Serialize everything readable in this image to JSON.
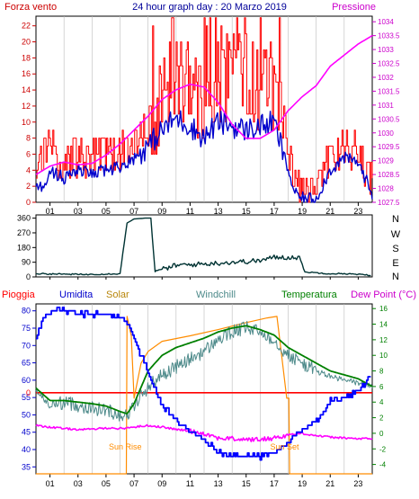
{
  "chart_data": [
    {
      "type": "line",
      "title": "24 hour graph day : 20 Marzo 2019",
      "left_label": "Forza vento",
      "right_label": "Pressione",
      "x_ticks": [
        "01",
        "03",
        "05",
        "07",
        "09",
        "11",
        "13",
        "15",
        "17",
        "19",
        "21",
        "23"
      ],
      "x_range": [
        0,
        24
      ],
      "y_left_ticks": [
        "0",
        "2",
        "4",
        "6",
        "8",
        "10",
        "12",
        "14",
        "16",
        "18",
        "20",
        "22"
      ],
      "y_left_range": [
        0,
        23.2
      ],
      "y_right_ticks": [
        "1027.5",
        "1028",
        "1028.5",
        "1029",
        "1029.5",
        "1030",
        "1030.5",
        "1031",
        "1031.5",
        "1032",
        "1032.5",
        "1033",
        "1033.5",
        "1034"
      ],
      "y_right_range": [
        1027.5,
        1034.2
      ],
      "colors": {
        "gust": "#ff0000",
        "speed": "#0000cc",
        "pressure": "#ff00ff"
      },
      "series": [
        {
          "key": "pressure",
          "axis": "right",
          "points": [
            [
              0,
              1028.5
            ],
            [
              1,
              1028.8
            ],
            [
              2,
              1028.95
            ],
            [
              3,
              1028.85
            ],
            [
              4,
              1028.9
            ],
            [
              5,
              1029.2
            ],
            [
              6,
              1029.6
            ],
            [
              7,
              1030.1
            ],
            [
              8,
              1030.6
            ],
            [
              9,
              1031.2
            ],
            [
              10,
              1031.55
            ],
            [
              11,
              1031.75
            ],
            [
              12,
              1031.65
            ],
            [
              13,
              1031.1
            ],
            [
              14,
              1030.3
            ],
            [
              15,
              1029.8
            ],
            [
              16,
              1029.8
            ],
            [
              17,
              1030.1
            ],
            [
              18,
              1030.8
            ],
            [
              19,
              1031.3
            ],
            [
              20,
              1031.7
            ],
            [
              21,
              1032.4
            ],
            [
              22,
              1032.8
            ],
            [
              23,
              1033.2
            ],
            [
              24,
              1033.5
            ]
          ]
        },
        {
          "key": "speed",
          "axis": "left",
          "points": [
            [
              0,
              1.5
            ],
            [
              0.5,
              2
            ],
            [
              1,
              4
            ],
            [
              2,
              3
            ],
            [
              3,
              4
            ],
            [
              4,
              3.5
            ],
            [
              5,
              4
            ],
            [
              6,
              4.5
            ],
            [
              7,
              5.5
            ],
            [
              8,
              7
            ],
            [
              9,
              9
            ],
            [
              10,
              10.5
            ],
            [
              11,
              9.5
            ],
            [
              12,
              8
            ],
            [
              13,
              10
            ],
            [
              14,
              9.5
            ],
            [
              15,
              9
            ],
            [
              16,
              9.5
            ],
            [
              17,
              10
            ],
            [
              18,
              4
            ],
            [
              18.5,
              1
            ],
            [
              19,
              0.5
            ],
            [
              20,
              0.5
            ],
            [
              21,
              4
            ],
            [
              22,
              5.5
            ],
            [
              23,
              5
            ],
            [
              24,
              1
            ]
          ]
        },
        {
          "key": "gust",
          "axis": "left",
          "points": [
            [
              0,
              4
            ],
            [
              0.5,
              6
            ],
            [
              1,
              7
            ],
            [
              2,
              5
            ],
            [
              3,
              5.5
            ],
            [
              4,
              5.5
            ],
            [
              5,
              6
            ],
            [
              6,
              6
            ],
            [
              7,
              7
            ],
            [
              8,
              9
            ],
            [
              9,
              14
            ],
            [
              10,
              16
            ],
            [
              11,
              15
            ],
            [
              12,
              13
            ],
            [
              13,
              16
            ],
            [
              14,
              15
            ],
            [
              15,
              16
            ],
            [
              16,
              15
            ],
            [
              17,
              14
            ],
            [
              18,
              7
            ],
            [
              18.5,
              3
            ],
            [
              19,
              1
            ],
            [
              20,
              1
            ],
            [
              21,
              6
            ],
            [
              22,
              7
            ],
            [
              23,
              6
            ],
            [
              24,
              2
            ]
          ]
        }
      ]
    },
    {
      "type": "line",
      "x_ticks": [
        "01",
        "03",
        "05",
        "07",
        "09",
        "11",
        "13",
        "15",
        "17",
        "19",
        "21",
        "23"
      ],
      "x_range": [
        0,
        24
      ],
      "y_left_ticks": [
        "0",
        "90",
        "180",
        "270",
        "360"
      ],
      "y_left_range": [
        0,
        380
      ],
      "y_right_ticks": [
        "N",
        "W",
        "S",
        "E",
        "N"
      ],
      "colors": {
        "direction": "#003333"
      },
      "series": [
        {
          "key": "direction",
          "points": [
            [
              0,
              20
            ],
            [
              3.5,
              15
            ],
            [
              6,
              20
            ],
            [
              6.5,
              330
            ],
            [
              7,
              355
            ],
            [
              7.8,
              360
            ],
            [
              8.2,
              360
            ],
            [
              8.5,
              35
            ],
            [
              10,
              70
            ],
            [
              12,
              80
            ],
            [
              14,
              90
            ],
            [
              16,
              100
            ],
            [
              17,
              120
            ],
            [
              18.8,
              120
            ],
            [
              19.2,
              30
            ],
            [
              21,
              20
            ],
            [
              22,
              20
            ],
            [
              24,
              10
            ]
          ]
        }
      ]
    },
    {
      "type": "line",
      "labels": {
        "rain": "Pioggia",
        "humidity": "Umidita",
        "solar": "Solar",
        "windchill": "Windchill",
        "temperature": "Temperatura",
        "dewpoint": "Dew Point (°C)",
        "sunrise": "Sun Rise",
        "sunset": "Sun Set"
      },
      "x_ticks": [
        "01",
        "03",
        "05",
        "07",
        "09",
        "11",
        "13",
        "15",
        "17",
        "19",
        "21",
        "23"
      ],
      "x_range": [
        0,
        24
      ],
      "y_left_ticks": [
        "35",
        "40",
        "45",
        "50",
        "55",
        "60",
        "65",
        "70",
        "75",
        "80"
      ],
      "y_left_range": [
        33,
        82
      ],
      "rain_zero_label": "0",
      "y_right_ticks": [
        "-4",
        "-2",
        "0",
        "2",
        "4",
        "6",
        "8",
        "10",
        "12",
        "14",
        "16"
      ],
      "y_right_range": [
        -5.2,
        16.6
      ],
      "colors": {
        "humidity": "#0000ff",
        "solar": "#ff8c00",
        "windchill": "#4d8a8a",
        "temperature": "#008000",
        "dewpoint": "#ff00ff",
        "rain": "#ff0000"
      },
      "series": [
        {
          "key": "humidity",
          "axis": "left",
          "points": [
            [
              0,
              72
            ],
            [
              0.5,
              78
            ],
            [
              1,
              80
            ],
            [
              2,
              80
            ],
            [
              3,
              79
            ],
            [
              4,
              79
            ],
            [
              5,
              79
            ],
            [
              6,
              78
            ],
            [
              6.5,
              77
            ],
            [
              7,
              72
            ],
            [
              8,
              62
            ],
            [
              9,
              53
            ],
            [
              10,
              48
            ],
            [
              11,
              45
            ],
            [
              12,
              43
            ],
            [
              13,
              39
            ],
            [
              14,
              38
            ],
            [
              15,
              38
            ],
            [
              16,
              38
            ],
            [
              17,
              39
            ],
            [
              18,
              42
            ],
            [
              19,
              46
            ],
            [
              20,
              48
            ],
            [
              21,
              54
            ],
            [
              22,
              55
            ],
            [
              23,
              57
            ],
            [
              24,
              62
            ]
          ]
        },
        {
          "key": "temperature",
          "axis": "right",
          "points": [
            [
              0,
              5.8
            ],
            [
              1,
              4.2
            ],
            [
              2,
              4.2
            ],
            [
              3,
              4
            ],
            [
              4,
              3.8
            ],
            [
              5,
              3.5
            ],
            [
              6,
              2.8
            ],
            [
              6.5,
              2.5
            ],
            [
              7,
              3.8
            ],
            [
              8,
              8
            ],
            [
              9,
              10
            ],
            [
              10,
              11
            ],
            [
              11,
              11.6
            ],
            [
              12,
              12.2
            ],
            [
              13,
              13
            ],
            [
              14,
              13.5
            ],
            [
              15,
              13.8
            ],
            [
              16,
              13.3
            ],
            [
              17,
              12.6
            ],
            [
              18,
              11
            ],
            [
              19,
              10
            ],
            [
              20,
              9
            ],
            [
              21,
              8
            ],
            [
              22,
              7.5
            ],
            [
              23,
              7
            ],
            [
              24,
              6
            ]
          ]
        },
        {
          "key": "windchill",
          "axis": "right",
          "points": [
            [
              0,
              5.5
            ],
            [
              1,
              3.5
            ],
            [
              2,
              4
            ],
            [
              3,
              3.6
            ],
            [
              4,
              3.2
            ],
            [
              5,
              3
            ],
            [
              6,
              2.4
            ],
            [
              6.5,
              2.3
            ],
            [
              7,
              3.5
            ],
            [
              8,
              6
            ],
            [
              9,
              7.5
            ],
            [
              10,
              8.5
            ],
            [
              11,
              9.5
            ],
            [
              12,
              10.5
            ],
            [
              13,
              12
            ],
            [
              14,
              13
            ],
            [
              15,
              13.5
            ],
            [
              16,
              13
            ],
            [
              17,
              12
            ],
            [
              18,
              10
            ],
            [
              19,
              9
            ],
            [
              20,
              8
            ],
            [
              21,
              7.3
            ],
            [
              22,
              6.8
            ],
            [
              23,
              6.5
            ],
            [
              24,
              6
            ]
          ]
        },
        {
          "key": "dewpoint",
          "axis": "right",
          "points": [
            [
              0,
              1
            ],
            [
              1,
              0.8
            ],
            [
              2,
              0.6
            ],
            [
              3,
              0.5
            ],
            [
              4,
              0.5
            ],
            [
              5,
              0.7
            ],
            [
              6,
              0.6
            ],
            [
              7,
              0.8
            ],
            [
              8,
              1
            ],
            [
              9,
              0.8
            ],
            [
              10,
              0.5
            ],
            [
              11,
              0.3
            ],
            [
              12,
              0
            ],
            [
              13,
              -0.6
            ],
            [
              14,
              -0.7
            ],
            [
              15,
              -0.8
            ],
            [
              16,
              -0.8
            ],
            [
              17,
              -0.6
            ],
            [
              18,
              -0.2
            ],
            [
              19,
              0
            ],
            [
              20,
              -0.3
            ],
            [
              21,
              -0.5
            ],
            [
              22,
              -0.6
            ],
            [
              23,
              -0.7
            ],
            [
              24,
              -0.7
            ]
          ]
        },
        {
          "key": "solar",
          "axis": "right",
          "points": [
            [
              0,
              -5.2
            ],
            [
              6.45,
              -5.2
            ],
            [
              6.5,
              15
            ],
            [
              6.8,
              12.5
            ],
            [
              7,
              4.5
            ],
            [
              7.5,
              9
            ],
            [
              8,
              10.5
            ],
            [
              9,
              11.8
            ],
            [
              11,
              12.5
            ],
            [
              13,
              13.3
            ],
            [
              15,
              14.2
            ],
            [
              16.5,
              14.8
            ],
            [
              17.2,
              15
            ],
            [
              17.5,
              10.5
            ],
            [
              17.9,
              4.5
            ],
            [
              18.05,
              4.5
            ],
            [
              18.1,
              -5.2
            ],
            [
              24,
              -5.2
            ]
          ]
        },
        {
          "key": "rain",
          "axis": "right",
          "points": [
            [
              0,
              5.2
            ],
            [
              24,
              5.2
            ]
          ]
        }
      ],
      "sunrise_x": 6.5,
      "sunset_x": 18.0
    }
  ]
}
